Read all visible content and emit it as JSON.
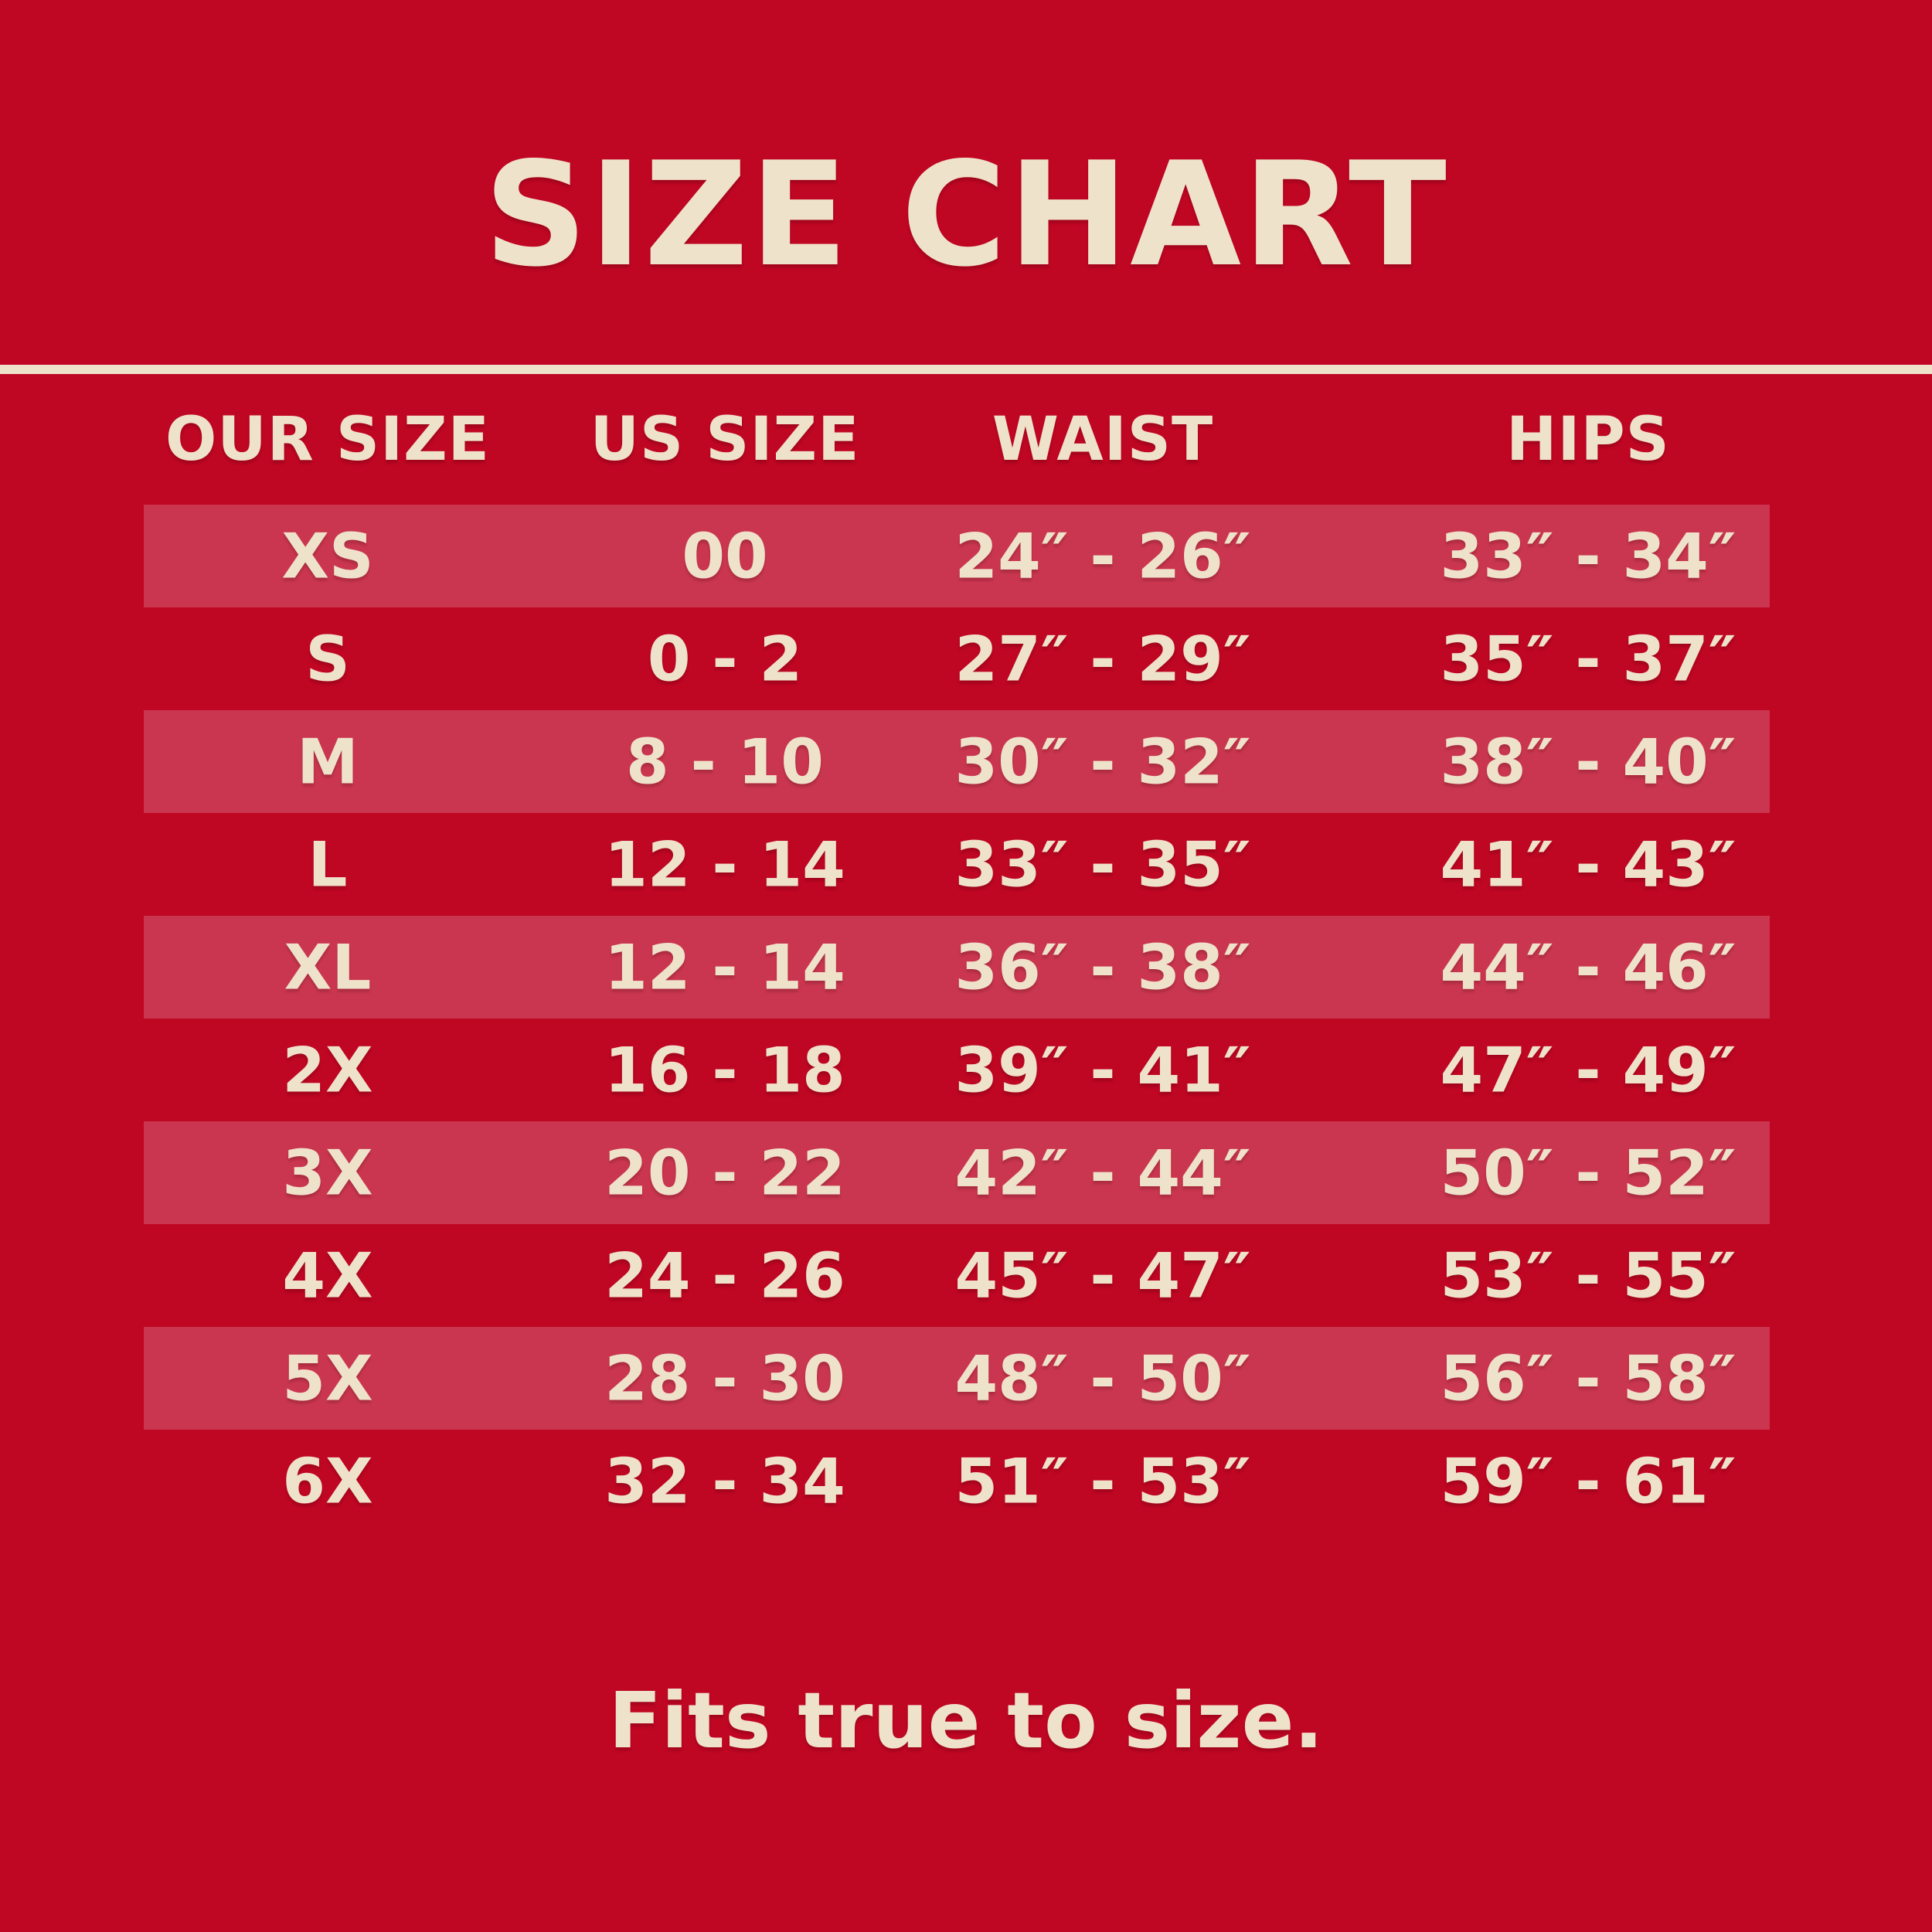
{
  "chart_data": {
    "type": "table",
    "title": "SIZE CHART",
    "columns": [
      "OUR SIZE",
      "US SIZE",
      "WAIST",
      "HIPS"
    ],
    "rows": [
      [
        "XS",
        "00",
        "24″ - 26″",
        "33″ - 34″"
      ],
      [
        "S",
        "0 - 2",
        "27″ - 29″",
        "35″ - 37″"
      ],
      [
        "M",
        "8 - 10",
        "30″ - 32″",
        "38″ - 40″"
      ],
      [
        "L",
        "12 - 14",
        "33″ - 35″",
        "41″ - 43″"
      ],
      [
        "XL",
        "12 - 14",
        "36″ - 38″",
        "44″ - 46″"
      ],
      [
        "2X",
        "16 - 18",
        "39″ - 41″",
        "47″ - 49″"
      ],
      [
        "3X",
        "20 - 22",
        "42″ - 44″",
        "50″ - 52″"
      ],
      [
        "4X",
        "24 - 26",
        "45″ - 47″",
        "53″ - 55″"
      ],
      [
        "5X",
        "28 - 30",
        "48″ - 50″",
        "56″ - 58″"
      ],
      [
        "6X",
        "32 - 34",
        "51″ - 53″",
        "59″ - 61″"
      ]
    ],
    "note": "Fits true to size.",
    "layout": "striped rows, stripes on rows 1,3,5,7,9 (XS, M, XL, 3X, 5X)"
  },
  "colors": {
    "background": "#BF0623",
    "stripe": "#CA364F",
    "text": "#EFE2CB"
  }
}
